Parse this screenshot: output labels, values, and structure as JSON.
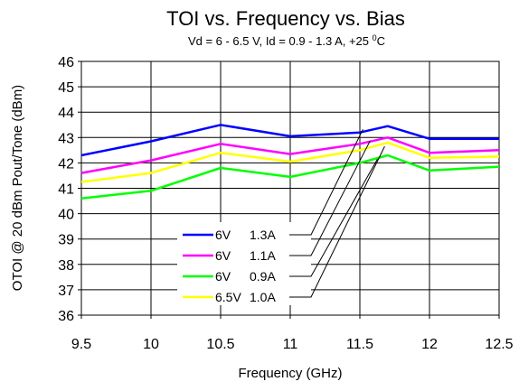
{
  "chart_data": {
    "type": "line",
    "title": "TOI vs. Frequency vs. Bias",
    "subtitle_main": "Vd = 6 - 6.5 V, Id = 0.9 - 1.3 A, +25 ",
    "subtitle_sup": "0",
    "subtitle_unit": "C",
    "xlabel": "Frequency (GHz)",
    "ylabel": "OTOI @ 20 dBm Pout/Tone (dBm)",
    "xlim": [
      9.5,
      12.5
    ],
    "ylim": [
      36,
      46
    ],
    "x_ticks": [
      "9.5",
      "10",
      "10.5",
      "11",
      "11.5",
      "12",
      "12.5"
    ],
    "y_ticks": [
      "36",
      "37",
      "38",
      "39",
      "40",
      "41",
      "42",
      "43",
      "44",
      "45",
      "46"
    ],
    "grid": true,
    "legend_position": "lower-left",
    "series": [
      {
        "name_v": "6V",
        "name_a": "1.3A",
        "color": "#0000ff",
        "x": [
          9.5,
          10,
          10.5,
          11,
          11.5,
          11.7,
          12,
          12.5
        ],
        "y": [
          42.3,
          42.85,
          43.5,
          43.05,
          43.2,
          43.45,
          42.95,
          42.95
        ]
      },
      {
        "name_v": "6V",
        "name_a": "1.1A",
        "color": "#ff00ff",
        "x": [
          9.5,
          10,
          10.5,
          11,
          11.5,
          11.7,
          12,
          12.5
        ],
        "y": [
          41.6,
          42.1,
          42.75,
          42.35,
          42.75,
          43.0,
          42.4,
          42.5
        ]
      },
      {
        "name_v": "6V",
        "name_a": "0.9A",
        "color": "#00ff00",
        "x": [
          9.5,
          10,
          10.5,
          11,
          11.5,
          11.7,
          12,
          12.5
        ],
        "y": [
          40.6,
          40.9,
          41.8,
          41.45,
          42.0,
          42.3,
          41.7,
          41.85
        ]
      },
      {
        "name_v": "6.5V",
        "name_a": "1.0A",
        "color": "#ffff00",
        "x": [
          9.5,
          10,
          10.5,
          11,
          11.5,
          11.7,
          12,
          12.5
        ],
        "y": [
          41.25,
          41.6,
          42.4,
          42.05,
          42.5,
          42.8,
          42.2,
          42.25
        ]
      }
    ]
  }
}
